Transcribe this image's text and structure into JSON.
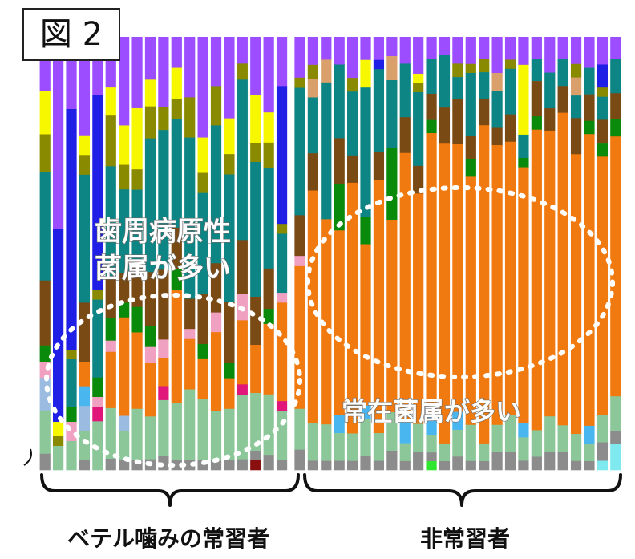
{
  "figure_label": "図 2",
  "annotations": {
    "periodontal": [
      "歯周病原性",
      "菌属が多い"
    ],
    "resident": "常在菌属が多い"
  },
  "groups": [
    "ベテル噛みの常習者",
    "非常習者"
  ],
  "colors": {
    "purple": "#9b4dff",
    "teal": "#0e8585",
    "orange": "#f07a0f",
    "brown": "#7a4a14",
    "olive": "#8a8a00",
    "yellow": "#f7f700",
    "blue": "#1f1fe6",
    "green": "#0a8a0a",
    "lightgreen": "#8cc79a",
    "tan": "#d9a06b",
    "pink": "#f0a0c0",
    "magenta": "#e0167a",
    "skyblue": "#4ab6f0",
    "lightblue": "#9bbbe0",
    "gray": "#8c8c8c",
    "cyan": "#7eeaf0",
    "darkred": "#8a1010",
    "lime": "#2ee62e"
  },
  "chart_data": {
    "type": "bar",
    "stacked": true,
    "normalized": true,
    "title": "",
    "xlabel": "",
    "ylabel": "",
    "ylim": [
      0,
      1
    ],
    "grid": false,
    "legend": "none",
    "group_of_bar": [
      0,
      0,
      0,
      0,
      0,
      0,
      0,
      0,
      0,
      0,
      0,
      0,
      0,
      0,
      0,
      0,
      0,
      0,
      0,
      1,
      1,
      1,
      1,
      1,
      1,
      1,
      1,
      1,
      1,
      1,
      1,
      1,
      1,
      1,
      1,
      1,
      1,
      1,
      1,
      1,
      1,
      1,
      1,
      1
    ],
    "series": [
      {
        "name": "",
        "color": "purple",
        "values": [
          0.1,
          0.4,
          0.15,
          0.2,
          0.12,
          0.09,
          0.18,
          0.14,
          0.08,
          0.15,
          0.06,
          0.12,
          0.2,
          0.1,
          0.16,
          0.05,
          0.12,
          0.15,
          0.1,
          0.08,
          0.06,
          0.05,
          0.06,
          0.09,
          0.05,
          0.05,
          0.04,
          0.06,
          0.08,
          0.05,
          0.04,
          0.06,
          0.06,
          0.05,
          0.08,
          0.05,
          0.06,
          0.05,
          0.08,
          0.05,
          0.06,
          0.07,
          0.06,
          0.05
        ]
      },
      {
        "name": "",
        "color": "blue",
        "values": [
          0.0,
          0.4,
          0.5,
          0.0,
          0.4,
          0.0,
          0.0,
          0.0,
          0.0,
          0.0,
          0.0,
          0.0,
          0.0,
          0.0,
          0.0,
          0.0,
          0.0,
          0.0,
          0.28,
          0.0,
          0.0,
          0.0,
          0.0,
          0.0,
          0.0,
          0.02,
          0.0,
          0.0,
          0.0,
          0.0,
          0.0,
          0.0,
          0.0,
          0.0,
          0.0,
          0.0,
          0.0,
          0.0,
          0.0,
          0.0,
          0.0,
          0.0,
          0.05,
          0.0
        ]
      },
      {
        "name": "",
        "color": "yellow",
        "values": [
          0.08,
          0.03,
          0.0,
          0.04,
          0.0,
          0.05,
          0.08,
          0.12,
          0.05,
          0.0,
          0.06,
          0.0,
          0.07,
          0.0,
          0.07,
          0.0,
          0.1,
          0.06,
          0.0,
          0.0,
          0.0,
          0.0,
          0.0,
          0.0,
          0.06,
          0.0,
          0.0,
          0.0,
          0.02,
          0.0,
          0.0,
          0.0,
          0.0,
          0.0,
          0.0,
          0.0,
          0.15,
          0.0,
          0.0,
          0.0,
          0.0,
          0.0,
          0.0,
          0.0
        ]
      },
      {
        "name": "",
        "color": "olive",
        "values": [
          0.07,
          0.02,
          0.02,
          0.04,
          0.02,
          0.09,
          0.05,
          0.04,
          0.06,
          0.05,
          0.04,
          0.08,
          0.04,
          0.08,
          0.04,
          0.03,
          0.04,
          0.05,
          0.02,
          0.02,
          0.03,
          0.0,
          0.0,
          0.03,
          0.0,
          0.0,
          0.0,
          0.0,
          0.02,
          0.0,
          0.0,
          0.03,
          0.02,
          0.03,
          0.0,
          0.02,
          0.0,
          0.0,
          0.0,
          0.0,
          0.03,
          0.0,
          0.02,
          0.0
        ]
      },
      {
        "name": "",
        "color": "tan",
        "values": [
          0.0,
          0.0,
          0.0,
          0.0,
          0.0,
          0.0,
          0.0,
          0.0,
          0.0,
          0.0,
          0.0,
          0.0,
          0.0,
          0.0,
          0.0,
          0.0,
          0.0,
          0.0,
          0.0,
          0.0,
          0.04,
          0.05,
          0.0,
          0.0,
          0.0,
          0.0,
          0.05,
          0.0,
          0.0,
          0.0,
          0.0,
          0.0,
          0.0,
          0.0,
          0.04,
          0.0,
          0.0,
          0.0,
          0.0,
          0.0,
          0.04,
          0.0,
          0.0,
          0.0
        ]
      },
      {
        "name": "",
        "color": "teal",
        "values": [
          0.2,
          0.0,
          0.1,
          0.26,
          0.16,
          0.2,
          0.17,
          0.14,
          0.25,
          0.3,
          0.21,
          0.32,
          0.2,
          0.28,
          0.25,
          0.3,
          0.28,
          0.2,
          0.12,
          0.25,
          0.12,
          0.3,
          0.16,
          0.14,
          0.28,
          0.18,
          0.14,
          0.12,
          0.16,
          0.08,
          0.12,
          0.05,
          0.14,
          0.06,
          0.08,
          0.1,
          0.05,
          0.05,
          0.08,
          0.06,
          0.05,
          0.06,
          0.05,
          0.08
        ]
      },
      {
        "name": "",
        "color": "brown",
        "values": [
          0.12,
          0.0,
          0.0,
          0.12,
          0.0,
          0.07,
          0.06,
          0.09,
          0.1,
          0.15,
          0.08,
          0.06,
          0.1,
          0.1,
          0.12,
          0.1,
          0.1,
          0.08,
          0.0,
          0.08,
          0.08,
          0.0,
          0.1,
          0.06,
          0.0,
          0.06,
          0.0,
          0.08,
          0.06,
          0.06,
          0.08,
          0.1,
          0.05,
          0.06,
          0.04,
          0.06,
          0.0,
          0.08,
          0.05,
          0.06,
          0.08,
          0.06,
          0.05,
          0.06
        ]
      },
      {
        "name": "",
        "color": "green",
        "values": [
          0.03,
          0.0,
          0.03,
          0.0,
          0.04,
          0.04,
          0.03,
          0.05,
          0.04,
          0.0,
          0.04,
          0.0,
          0.03,
          0.0,
          0.03,
          0.0,
          0.0,
          0.03,
          0.0,
          0.0,
          0.0,
          0.0,
          0.1,
          0.0,
          0.06,
          0.0,
          0.15,
          0.0,
          0.0,
          0.03,
          0.0,
          0.0,
          0.04,
          0.0,
          0.0,
          0.0,
          0.02,
          0.03,
          0.0,
          0.0,
          0.0,
          0.03,
          0.03,
          0.04
        ]
      },
      {
        "name": "",
        "color": "pink",
        "values": [
          0.03,
          0.0,
          0.04,
          0.0,
          0.02,
          0.02,
          0.0,
          0.0,
          0.03,
          0.04,
          0.0,
          0.02,
          0.0,
          0.04,
          0.0,
          0.05,
          0.0,
          0.0,
          0.02,
          0.02,
          0.0,
          0.0,
          0.0,
          0.0,
          0.0,
          0.0,
          0.0,
          0.0,
          0.0,
          0.0,
          0.0,
          0.0,
          0.0,
          0.0,
          0.0,
          0.0,
          0.0,
          0.0,
          0.0,
          0.0,
          0.0,
          0.0,
          0.0,
          0.0
        ]
      },
      {
        "name": "",
        "color": "orange",
        "values": [
          0.0,
          0.0,
          0.0,
          0.05,
          0.0,
          0.1,
          0.2,
          0.15,
          0.1,
          0.06,
          0.22,
          0.1,
          0.08,
          0.16,
          0.06,
          0.12,
          0.1,
          0.14,
          0.2,
          0.28,
          0.5,
          0.45,
          0.4,
          0.55,
          0.35,
          0.55,
          0.4,
          0.6,
          0.5,
          0.65,
          0.68,
          0.6,
          0.55,
          0.72,
          0.62,
          0.6,
          0.55,
          0.68,
          0.64,
          0.7,
          0.62,
          0.66,
          0.56,
          0.6
        ]
      },
      {
        "name": "",
        "color": "skyblue",
        "values": [
          0.0,
          0.0,
          0.0,
          0.04,
          0.0,
          0.0,
          0.0,
          0.0,
          0.0,
          0.0,
          0.0,
          0.0,
          0.0,
          0.0,
          0.0,
          0.0,
          0.0,
          0.0,
          0.0,
          0.0,
          0.0,
          0.0,
          0.04,
          0.0,
          0.03,
          0.0,
          0.0,
          0.05,
          0.0,
          0.04,
          0.0,
          0.04,
          0.0,
          0.0,
          0.0,
          0.0,
          0.03,
          0.0,
          0.0,
          0.0,
          0.0,
          0.04,
          0.0,
          0.0
        ]
      },
      {
        "name": "",
        "color": "lightblue",
        "values": [
          0.06,
          0.0,
          0.0,
          0.05,
          0.0,
          0.0,
          0.03,
          0.0,
          0.0,
          0.0,
          0.0,
          0.0,
          0.0,
          0.0,
          0.0,
          0.0,
          0.0,
          0.0,
          0.0,
          0.0,
          0.0,
          0.0,
          0.0,
          0.0,
          0.0,
          0.0,
          0.0,
          0.0,
          0.0,
          0.0,
          0.0,
          0.0,
          0.0,
          0.0,
          0.0,
          0.0,
          0.0,
          0.0,
          0.0,
          0.0,
          0.0,
          0.0,
          0.0,
          0.0
        ]
      },
      {
        "name": "",
        "color": "magenta",
        "values": [
          0.0,
          0.0,
          0.0,
          0.0,
          0.03,
          0.0,
          0.0,
          0.0,
          0.0,
          0.03,
          0.0,
          0.0,
          0.0,
          0.0,
          0.0,
          0.02,
          0.0,
          0.0,
          0.02,
          0.0,
          0.0,
          0.0,
          0.0,
          0.0,
          0.0,
          0.0,
          0.0,
          0.0,
          0.0,
          0.0,
          0.0,
          0.0,
          0.0,
          0.0,
          0.0,
          0.0,
          0.0,
          0.0,
          0.0,
          0.0,
          0.0,
          0.0,
          0.0,
          0.0
        ]
      },
      {
        "name": "",
        "color": "lightgreen",
        "values": [
          0.08,
          0.05,
          0.06,
          0.06,
          0.1,
          0.09,
          0.06,
          0.1,
          0.08,
          0.12,
          0.11,
          0.14,
          0.12,
          0.1,
          0.1,
          0.12,
          0.12,
          0.12,
          0.1,
          0.08,
          0.08,
          0.08,
          0.06,
          0.06,
          0.08,
          0.06,
          0.08,
          0.04,
          0.06,
          0.04,
          0.04,
          0.06,
          0.08,
          0.04,
          0.06,
          0.08,
          0.05,
          0.06,
          0.08,
          0.06,
          0.06,
          0.04,
          0.06,
          0.08
        ]
      },
      {
        "name": "",
        "color": "gray",
        "values": [
          0.03,
          0.0,
          0.0,
          0.02,
          0.0,
          0.02,
          0.02,
          0.02,
          0.02,
          0.03,
          0.02,
          0.02,
          0.02,
          0.02,
          0.02,
          0.02,
          0.02,
          0.03,
          0.02,
          0.04,
          0.02,
          0.02,
          0.02,
          0.02,
          0.03,
          0.02,
          0.04,
          0.02,
          0.04,
          0.02,
          0.02,
          0.03,
          0.02,
          0.02,
          0.04,
          0.04,
          0.02,
          0.03,
          0.04,
          0.04,
          0.02,
          0.02,
          0.04,
          0.03
        ]
      },
      {
        "name": "",
        "color": "cyan",
        "values": [
          0.0,
          0.0,
          0.0,
          0.0,
          0.0,
          0.0,
          0.0,
          0.0,
          0.0,
          0.0,
          0.0,
          0.0,
          0.0,
          0.0,
          0.0,
          0.0,
          0.0,
          0.0,
          0.0,
          0.0,
          0.0,
          0.0,
          0.0,
          0.0,
          0.0,
          0.0,
          0.0,
          0.0,
          0.0,
          0.0,
          0.0,
          0.0,
          0.0,
          0.0,
          0.0,
          0.0,
          0.0,
          0.0,
          0.0,
          0.0,
          0.0,
          0.0,
          0.02,
          0.06
        ]
      },
      {
        "name": "",
        "color": "darkred",
        "values": [
          0.0,
          0.0,
          0.0,
          0.0,
          0.0,
          0.0,
          0.0,
          0.0,
          0.0,
          0.0,
          0.0,
          0.0,
          0.0,
          0.0,
          0.0,
          0.0,
          0.02,
          0.0,
          0.0,
          0.0,
          0.0,
          0.0,
          0.0,
          0.0,
          0.0,
          0.0,
          0.0,
          0.0,
          0.0,
          0.0,
          0.0,
          0.0,
          0.0,
          0.0,
          0.0,
          0.0,
          0.0,
          0.0,
          0.0,
          0.0,
          0.0,
          0.0,
          0.0,
          0.0
        ]
      },
      {
        "name": "",
        "color": "lime",
        "values": [
          0.0,
          0.0,
          0.0,
          0.0,
          0.0,
          0.0,
          0.0,
          0.0,
          0.0,
          0.0,
          0.0,
          0.0,
          0.0,
          0.0,
          0.0,
          0.0,
          0.0,
          0.0,
          0.0,
          0.0,
          0.0,
          0.0,
          0.0,
          0.0,
          0.0,
          0.0,
          0.0,
          0.0,
          0.0,
          0.02,
          0.0,
          0.0,
          0.0,
          0.0,
          0.0,
          0.0,
          0.0,
          0.0,
          0.0,
          0.0,
          0.0,
          0.0,
          0.0,
          0.0
        ]
      }
    ]
  }
}
